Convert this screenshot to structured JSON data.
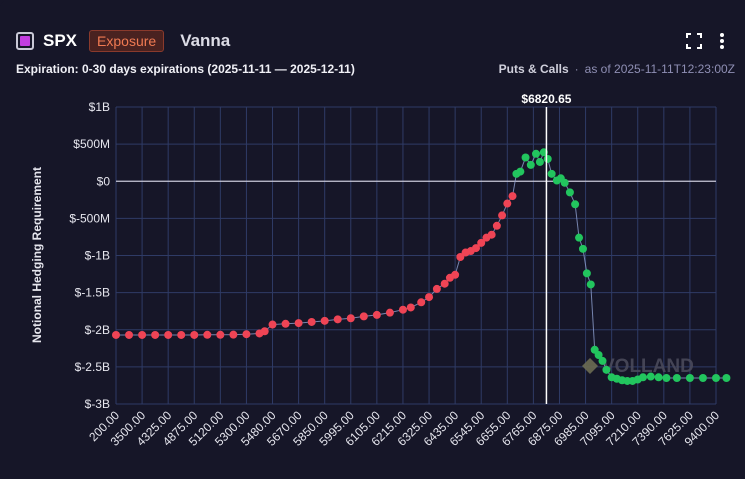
{
  "header": {
    "ticker": "SPX",
    "badge": "Exposure",
    "metric": "Vanna",
    "expiration": "Expiration: 0-30 days expirations (2025-11-11 — 2025-12-11)",
    "filter": "Puts & Calls",
    "separator": "·",
    "as_of": "as of 2025-11-11T12:23:00Z",
    "icons": [
      "fullscreen-icon",
      "more-vert-icon"
    ]
  },
  "colors": {
    "background": "#161628",
    "positive": "#22c55e",
    "negative": "#ef4455",
    "grid": "#2f3b66",
    "line": "#8ea0d0",
    "marker": "#ffffff"
  },
  "chart_data": {
    "type": "scatter",
    "ylabel": "Notional Hedging Requirement",
    "xlabel": "",
    "y_ticks": [
      "$1B",
      "$500M",
      "$0",
      "$-500M",
      "$-1B",
      "$-1.5B",
      "$-2B",
      "$-2.5B",
      "$-3B"
    ],
    "y_tick_values": [
      1000000000,
      500000000,
      0,
      -500000000,
      -1000000000,
      -1500000000,
      -2000000000,
      -2500000000,
      -3000000000
    ],
    "ylim": [
      -3000000000,
      1000000000
    ],
    "x_tick_labels": [
      "200.00",
      "3500.00",
      "4325.00",
      "4875.00",
      "5120.00",
      "5300.00",
      "5480.00",
      "5670.00",
      "5850.00",
      "5995.00",
      "6105.00",
      "6215.00",
      "6325.00",
      "6435.00",
      "6545.00",
      "6655.00",
      "6765.00",
      "6875.00",
      "6985.00",
      "7095.00",
      "7210.00",
      "7390.00",
      "7625.00",
      "9400.00"
    ],
    "marker_label": "$6820.65",
    "marker_index": 16.5,
    "grid": true,
    "watermark": "VOLLAND",
    "series_values_in_millions": [
      [
        0,
        -2070
      ],
      [
        0.5,
        -2070
      ],
      [
        1,
        -2070
      ],
      [
        1.5,
        -2070
      ],
      [
        2,
        -2070
      ],
      [
        2.5,
        -2070
      ],
      [
        3,
        -2070
      ],
      [
        3.5,
        -2068
      ],
      [
        4,
        -2068
      ],
      [
        4.5,
        -2066
      ],
      [
        5,
        -2060
      ],
      [
        5.5,
        -2050
      ],
      [
        5.7,
        -2020
      ],
      [
        6,
        -1930
      ],
      [
        6.5,
        -1920
      ],
      [
        7,
        -1910
      ],
      [
        7.5,
        -1895
      ],
      [
        8,
        -1880
      ],
      [
        8.5,
        -1860
      ],
      [
        9,
        -1845
      ],
      [
        9.5,
        -1820
      ],
      [
        10,
        -1800
      ],
      [
        10.5,
        -1770
      ],
      [
        11,
        -1730
      ],
      [
        11.3,
        -1700
      ],
      [
        11.7,
        -1630
      ],
      [
        12,
        -1560
      ],
      [
        12.3,
        -1450
      ],
      [
        12.6,
        -1380
      ],
      [
        12.8,
        -1300
      ],
      [
        13,
        -1260
      ],
      [
        13.2,
        -1020
      ],
      [
        13.4,
        -960
      ],
      [
        13.6,
        -940
      ],
      [
        13.8,
        -900
      ],
      [
        14,
        -830
      ],
      [
        14.2,
        -760
      ],
      [
        14.4,
        -720
      ],
      [
        14.6,
        -600
      ],
      [
        14.8,
        -460
      ],
      [
        15,
        -300
      ],
      [
        15.2,
        -200
      ],
      [
        15.35,
        100
      ],
      [
        15.5,
        130
      ],
      [
        15.7,
        320
      ],
      [
        15.9,
        220
      ],
      [
        16.1,
        370
      ],
      [
        16.25,
        260
      ],
      [
        16.4,
        390
      ],
      [
        16.55,
        300
      ],
      [
        16.7,
        100
      ],
      [
        16.9,
        10
      ],
      [
        17.05,
        40
      ],
      [
        17.2,
        -20
      ],
      [
        17.4,
        -150
      ],
      [
        17.6,
        -310
      ],
      [
        17.75,
        -760
      ],
      [
        17.9,
        -910
      ],
      [
        18.05,
        -1240
      ],
      [
        18.2,
        -1390
      ],
      [
        18.35,
        -2270
      ],
      [
        18.5,
        -2340
      ],
      [
        18.65,
        -2420
      ],
      [
        18.8,
        -2540
      ],
      [
        19,
        -2640
      ],
      [
        19.2,
        -2660
      ],
      [
        19.4,
        -2680
      ],
      [
        19.6,
        -2690
      ],
      [
        19.8,
        -2690
      ],
      [
        20,
        -2670
      ],
      [
        20.2,
        -2640
      ],
      [
        20.5,
        -2630
      ],
      [
        20.8,
        -2640
      ],
      [
        21.1,
        -2650
      ],
      [
        21.5,
        -2650
      ],
      [
        22,
        -2650
      ],
      [
        22.5,
        -2650
      ],
      [
        23,
        -2650
      ],
      [
        23.4,
        -2650
      ]
    ]
  }
}
